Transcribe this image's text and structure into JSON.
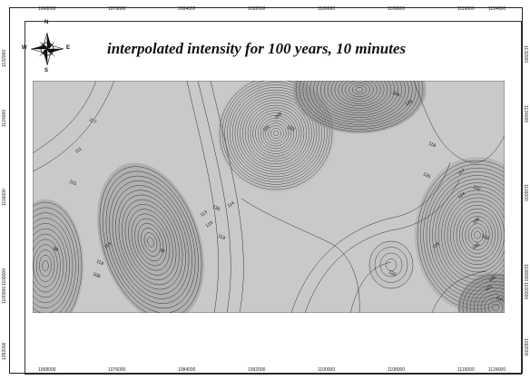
{
  "map": {
    "title": "interpolated intensity for 100 years, 10 minutes",
    "compass": {
      "n": "N",
      "s": "S",
      "e": "E",
      "w": "W",
      "icon": "compass-rose-icon"
    },
    "x_ticks": [
      "1068000",
      "1076000",
      "1084000",
      "1092000",
      "1100000",
      "1108000",
      "1116000",
      "1124000"
    ],
    "y_ticks": [
      "1132000",
      "1124000",
      "1116000",
      "1108000",
      "1100000",
      "1092000"
    ],
    "contour_labels": [
      "117",
      "111",
      "115",
      "109",
      "103",
      "101",
      "104",
      "126",
      "118",
      "108",
      "103",
      "105",
      "97",
      "123",
      "119",
      "113",
      "135",
      "114",
      "125",
      "124",
      "122",
      "117",
      "120",
      "116",
      "119",
      "113",
      "108",
      "101",
      "110",
      "105",
      "99"
    ],
    "colors": {
      "background": "#c9c9c9",
      "low": "#8a8a8a",
      "high": "#b5b5b5",
      "contour": "#333333"
    }
  }
}
